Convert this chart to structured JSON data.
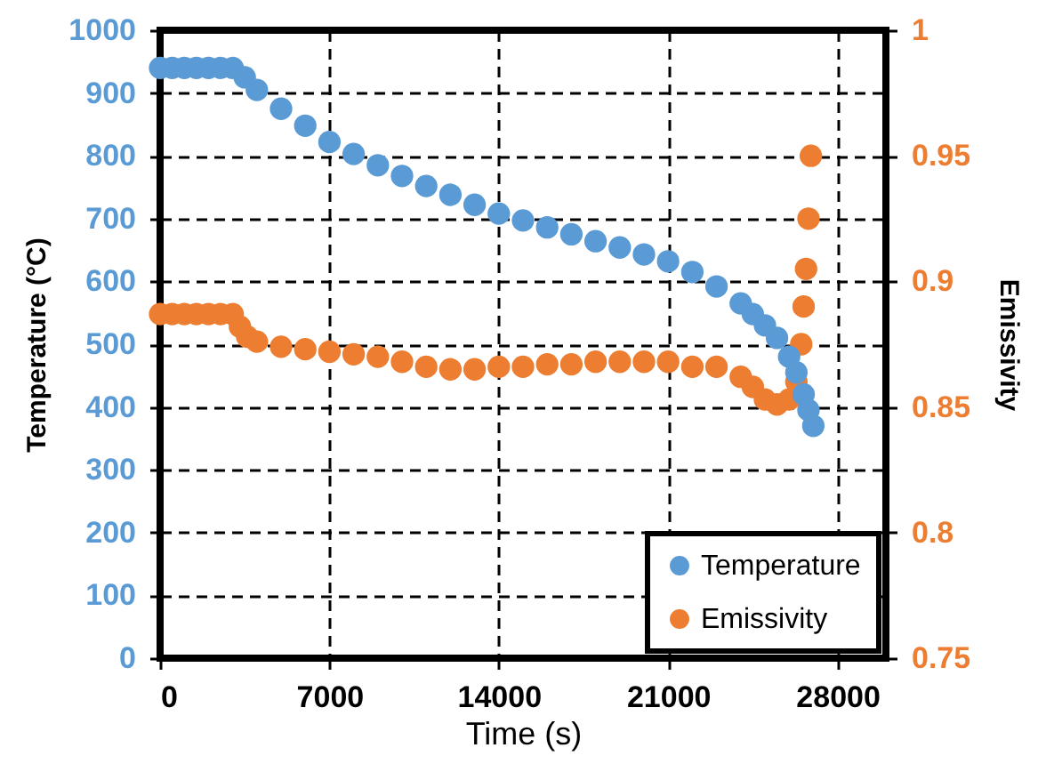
{
  "chart_data": {
    "type": "scatter",
    "xlabel": "Time (s)",
    "ylabel": "Temperature (°C)",
    "y2label": "Emissivity",
    "xlim": [
      0,
      30000
    ],
    "xticks": [
      0,
      7000,
      14000,
      21000,
      28000
    ],
    "ylim": [
      0,
      1000
    ],
    "yticks": [
      0,
      100,
      200,
      300,
      400,
      500,
      600,
      700,
      800,
      900,
      1000
    ],
    "y2lim": [
      0.75,
      1
    ],
    "y2ticks": [
      0.75,
      0.8,
      0.85,
      0.9,
      0.95,
      1
    ],
    "grid": true,
    "legend": "bottom right",
    "marker": "circle",
    "series": [
      {
        "name": "Temperature",
        "color": "#5b9bd5",
        "x": [
          0,
          500,
          1000,
          1500,
          2000,
          2500,
          3000,
          3500,
          4000,
          5000,
          6000,
          7000,
          8000,
          9000,
          10000,
          11000,
          12000,
          13000,
          14000,
          15000,
          16000,
          17000,
          18000,
          19000,
          20000,
          21000,
          22000,
          23000,
          24000,
          24500,
          25000,
          25500,
          26000,
          26300,
          26600,
          26800,
          27000
        ],
        "values": [
          940,
          940,
          940,
          940,
          940,
          940,
          940,
          925,
          905,
          875,
          848,
          822,
          803,
          785,
          768,
          752,
          738,
          722,
          708,
          697,
          686,
          675,
          664,
          654,
          643,
          632,
          615,
          592,
          565,
          548,
          530,
          510,
          480,
          455,
          420,
          395,
          370
        ]
      },
      {
        "name": "Emissivity",
        "color": "#ed7d31",
        "axis": "y2",
        "x": [
          0,
          500,
          1000,
          1500,
          2000,
          2500,
          3000,
          3300,
          3600,
          4000,
          5000,
          6000,
          7000,
          8000,
          9000,
          10000,
          11000,
          12000,
          13000,
          14000,
          15000,
          16000,
          17000,
          18000,
          19000,
          20000,
          21000,
          22000,
          23000,
          24000,
          24500,
          25000,
          25500,
          26000,
          26300,
          26500,
          26600,
          26700,
          26800,
          26900
        ],
        "values": [
          0.887,
          0.887,
          0.887,
          0.887,
          0.887,
          0.887,
          0.887,
          0.882,
          0.878,
          0.876,
          0.874,
          0.873,
          0.872,
          0.871,
          0.87,
          0.868,
          0.866,
          0.865,
          0.865,
          0.866,
          0.866,
          0.867,
          0.867,
          0.868,
          0.868,
          0.868,
          0.868,
          0.866,
          0.866,
          0.862,
          0.858,
          0.853,
          0.851,
          0.853,
          0.86,
          0.875,
          0.89,
          0.905,
          0.925,
          0.95
        ]
      }
    ]
  }
}
